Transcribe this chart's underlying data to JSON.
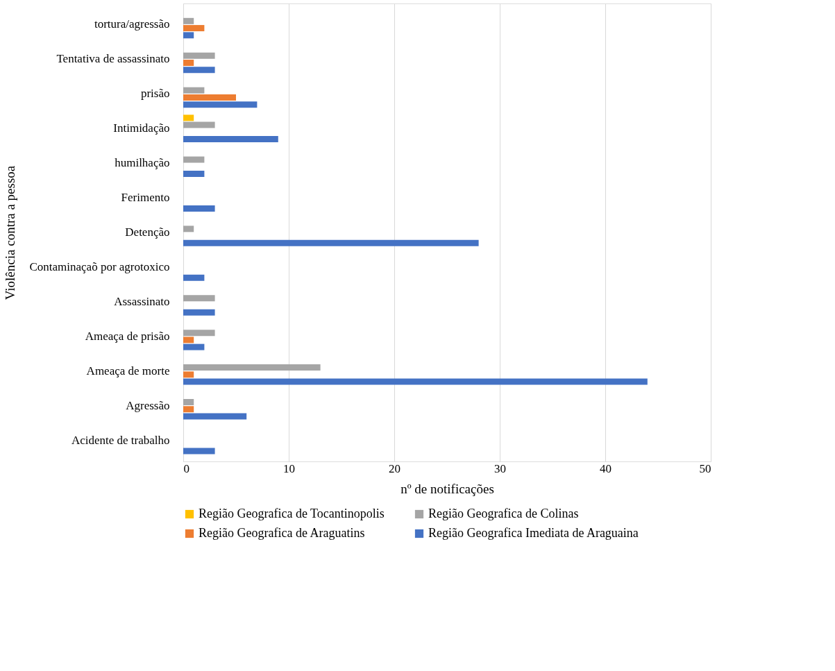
{
  "chart_data": {
    "type": "bar",
    "orientation": "horizontal",
    "xlabel": "nº de notificações",
    "ylabel": "Violência contra a pessoa",
    "categories": [
      "tortura/agressão",
      "Tentativa de assassinato",
      "prisão",
      "Intimidação",
      "humilhação",
      "Ferimento",
      "Detenção",
      "Contaminaçaõ por agrotoxico",
      "Assassinato",
      "Ameaça de prisão",
      "Ameaça de morte",
      "Agressão",
      "Acidente de trabalho"
    ],
    "series": [
      {
        "name": "Região Geografica de Tocantinopolis",
        "color": "#ffc000",
        "values": [
          null,
          null,
          null,
          1,
          null,
          null,
          null,
          null,
          null,
          null,
          null,
          null,
          null
        ]
      },
      {
        "name": "Região Geografica de Colinas",
        "color": "#a5a5a5",
        "values": [
          1,
          3,
          2,
          3,
          2,
          null,
          1,
          null,
          3,
          3,
          13,
          1,
          null
        ]
      },
      {
        "name": "Região Geografica de Araguatins",
        "color": "#ed7d31",
        "values": [
          2,
          1,
          5,
          null,
          null,
          null,
          null,
          null,
          null,
          1,
          1,
          1,
          null
        ]
      },
      {
        "name": "Região Geografica Imediata de Araguaina",
        "color": "#4472c4",
        "values": [
          1,
          3,
          7,
          9,
          2,
          3,
          28,
          2,
          3,
          2,
          44,
          6,
          3
        ]
      }
    ],
    "xlim": [
      0,
      50
    ],
    "xticks": [
      0,
      10,
      20,
      30,
      40,
      50
    ],
    "grid": "x",
    "legend": "bottom"
  }
}
